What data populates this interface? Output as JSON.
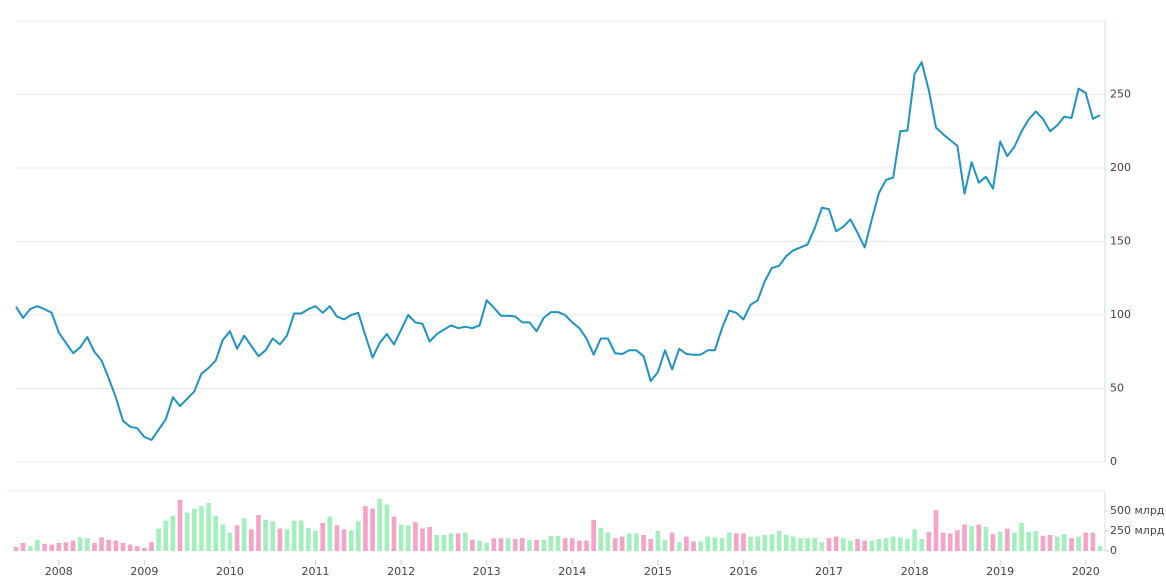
{
  "chart_data": [
    {
      "type": "line",
      "color": "#1f93c4",
      "ylim": [
        0,
        300
      ],
      "yticks": [
        0,
        50,
        100,
        150,
        200,
        250
      ],
      "grid": true,
      "values": [
        105.6,
        98,
        104,
        106,
        104,
        101.5,
        88,
        81,
        74,
        78,
        85,
        75,
        69,
        57,
        44,
        28,
        24,
        23,
        17,
        15,
        22,
        29,
        44,
        38,
        43,
        48,
        60,
        64,
        69,
        83,
        89,
        77,
        86,
        79,
        72,
        76,
        84,
        80,
        86,
        101,
        101,
        104,
        106,
        101.5,
        106,
        99,
        97,
        100,
        101.5,
        86,
        71,
        81,
        87,
        80,
        90,
        100,
        95,
        94,
        82,
        87,
        90,
        93,
        91,
        92,
        91,
        93,
        110,
        105,
        99.5,
        99.5,
        99,
        95,
        95,
        89,
        98,
        102,
        102,
        100,
        95,
        91,
        84,
        73,
        84,
        84,
        74,
        73.5,
        76,
        76,
        72,
        55,
        61,
        76,
        63,
        77,
        73.5,
        73,
        73,
        76,
        76,
        91,
        103,
        101.5,
        97,
        107,
        110,
        123,
        132,
        133.5,
        140,
        144,
        146,
        148,
        159,
        173,
        172,
        157,
        160,
        165,
        156,
        146,
        165,
        183,
        192,
        193.5,
        225,
        225.5,
        264,
        272,
        253,
        227.5,
        223,
        219,
        215,
        182.5,
        204,
        190,
        194,
        186,
        218,
        208,
        214.5,
        225,
        233,
        238.5,
        233.5,
        225,
        229,
        235,
        234,
        254,
        251,
        233.5,
        236
      ]
    },
    {
      "type": "bar",
      "up_color": "#a3f0bd",
      "down_color": "#f5a3c7",
      "ylim": [
        0,
        750
      ],
      "yticks": [
        0,
        {
          "value": 250,
          "label": "250 млрд"
        },
        {
          "value": 500,
          "label": "500 млрд"
        }
      ],
      "categories": [
        null,
        null,
        null,
        null,
        null,
        null,
        "2008",
        null,
        null,
        null,
        null,
        null,
        null,
        null,
        null,
        null,
        null,
        null,
        "2009",
        null,
        null,
        null,
        null,
        null,
        null,
        null,
        null,
        null,
        null,
        null,
        "2010",
        null,
        null,
        null,
        null,
        null,
        null,
        null,
        null,
        null,
        null,
        null,
        "2011",
        null,
        null,
        null,
        null,
        null,
        null,
        null,
        null,
        null,
        null,
        null,
        "2012",
        null,
        null,
        null,
        null,
        null,
        null,
        null,
        null,
        null,
        null,
        null,
        "2013",
        null,
        null,
        null,
        null,
        null,
        null,
        null,
        null,
        null,
        null,
        null,
        "2014",
        null,
        null,
        null,
        null,
        null,
        null,
        null,
        null,
        null,
        null,
        null,
        "2015",
        null,
        null,
        null,
        null,
        null,
        null,
        null,
        null,
        null,
        null,
        null,
        "2016",
        null,
        null,
        null,
        null,
        null,
        null,
        null,
        null,
        null,
        null,
        null,
        "2017",
        null,
        null,
        null,
        null,
        null,
        null,
        null,
        null,
        null,
        null,
        null,
        "2018",
        null,
        null,
        null,
        null,
        null,
        null,
        null,
        null,
        null,
        null,
        null,
        "2019",
        null,
        null,
        null,
        null,
        null,
        null,
        null,
        null,
        null,
        null,
        null,
        "2020",
        null,
        null
      ],
      "values": [
        50,
        100,
        60,
        140,
        90,
        80,
        100,
        110,
        130,
        170,
        160,
        100,
        170,
        140,
        130,
        100,
        80,
        60,
        40,
        110,
        280,
        380,
        440,
        640,
        480,
        530,
        560,
        600,
        440,
        330,
        230,
        320,
        410,
        270,
        450,
        390,
        370,
        280,
        270,
        380,
        380,
        290,
        250,
        350,
        430,
        320,
        270,
        260,
        370,
        560,
        530,
        650,
        580,
        430,
        330,
        320,
        360,
        280,
        300,
        200,
        200,
        220,
        220,
        230,
        140,
        130,
        100,
        160,
        160,
        160,
        150,
        160,
        140,
        140,
        140,
        190,
        190,
        160,
        160,
        130,
        130,
        390,
        290,
        230,
        160,
        180,
        220,
        220,
        200,
        150,
        250,
        140,
        230,
        110,
        180,
        120,
        120,
        180,
        170,
        160,
        230,
        220,
        220,
        180,
        180,
        200,
        210,
        250,
        200,
        180,
        160,
        160,
        160,
        110,
        160,
        180,
        160,
        130,
        150,
        130,
        130,
        150,
        160,
        180,
        170,
        150,
        270,
        150,
        240,
        510,
        230,
        220,
        260,
        330,
        310,
        330,
        300,
        210,
        240,
        280,
        230,
        350,
        240,
        250,
        190,
        200,
        180,
        210,
        160,
        180,
        230,
        230,
        60
      ]
    }
  ]
}
